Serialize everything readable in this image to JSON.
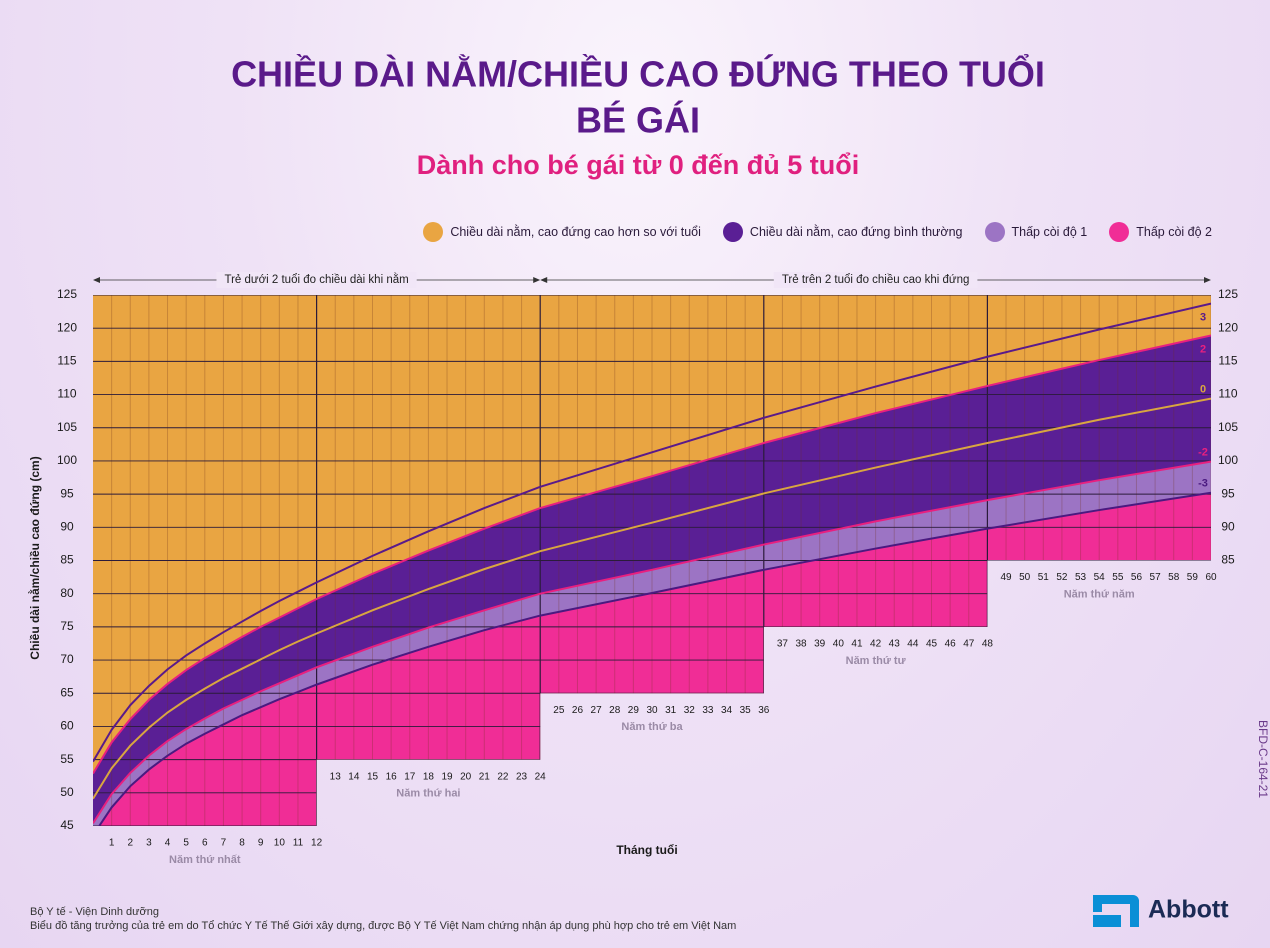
{
  "chart_data": {
    "type": "line",
    "title": [
      "CHIỀU DÀI NẰM/CHIỀU CAO ĐỨNG THEO TUỔI",
      "BÉ GÁI"
    ],
    "subtitle": "Dành cho bé gái từ 0 đến đủ 5 tuổi",
    "legend": [
      {
        "name": "Chiều dài nằm, cao đứng cao hơn so với tuổi",
        "color": "#e9a542"
      },
      {
        "name": "Chiều dài nằm, cao đứng bình thường",
        "color": "#5a1f95"
      },
      {
        "name": "Thấp còi độ 1",
        "color": "#9c74c4"
      },
      {
        "name": "Thấp còi độ 2",
        "color": "#f02d96"
      }
    ],
    "annotations": [
      "Trẻ dưới 2 tuổi đo chiều dài khi nằm",
      "Trẻ trên 2 tuổi đo chiều cao khi đứng"
    ],
    "y_label": "Chiều dài nằm/chiều cao đứng (cm)",
    "x_label": "Tháng tuổi",
    "xlim": [
      0,
      60
    ],
    "ylim": [
      45,
      125
    ],
    "y2lim": [
      45,
      125
    ],
    "yticks": [
      45,
      50,
      55,
      60,
      65,
      70,
      75,
      80,
      85,
      90,
      95,
      100,
      105,
      110,
      115,
      120,
      125
    ],
    "y2ticks": [
      85,
      90,
      95,
      100,
      105,
      110,
      115,
      120,
      125
    ],
    "xticks": [
      1,
      2,
      3,
      4,
      5,
      6,
      7,
      8,
      9,
      10,
      11,
      12,
      13,
      14,
      15,
      16,
      17,
      18,
      19,
      20,
      21,
      22,
      23,
      24,
      25,
      26,
      27,
      28,
      29,
      30,
      31,
      32,
      33,
      34,
      35,
      36,
      37,
      38,
      39,
      40,
      41,
      42,
      43,
      44,
      45,
      46,
      47,
      48,
      49,
      50,
      51,
      52,
      53,
      54,
      55,
      56,
      57,
      58,
      59,
      60
    ],
    "years": [
      {
        "label": "Năm thứ nhất",
        "start": 0,
        "end": 12,
        "floor": 45
      },
      {
        "label": "Năm thứ hai",
        "start": 12,
        "end": 24,
        "floor": 55
      },
      {
        "label": "Năm thứ ba",
        "start": 24,
        "end": 36,
        "floor": 65
      },
      {
        "label": "Năm thứ tư",
        "start": 36,
        "end": 48,
        "floor": 75
      },
      {
        "label": "Năm thứ năm",
        "start": 48,
        "end": 60,
        "floor": 85
      }
    ],
    "x": [
      0,
      1,
      2,
      3,
      4,
      5,
      6,
      7,
      8,
      9,
      10,
      11,
      12,
      15,
      18,
      21,
      24,
      30,
      36,
      42,
      48,
      54,
      60
    ],
    "series": [
      {
        "name": "3",
        "color": "#5a1a8a",
        "values": [
          54.7,
          59.5,
          63.2,
          66.1,
          68.6,
          70.7,
          72.5,
          74.2,
          75.8,
          77.4,
          78.9,
          80.3,
          81.7,
          85.7,
          89.4,
          92.9,
          96.1,
          101.3,
          106.5,
          111.2,
          115.7,
          119.8,
          123.7
        ]
      },
      {
        "name": "2",
        "color": "#e8207f",
        "values": [
          52.9,
          57.6,
          61.1,
          64.0,
          66.4,
          68.5,
          70.3,
          71.9,
          73.5,
          75.0,
          76.4,
          77.8,
          79.2,
          83.0,
          86.5,
          89.8,
          92.9,
          97.7,
          102.7,
          107.2,
          111.3,
          115.2,
          118.9
        ]
      },
      {
        "name": "0",
        "color": "#d9a640",
        "values": [
          49.1,
          53.7,
          57.1,
          59.8,
          62.1,
          64.0,
          65.7,
          67.3,
          68.7,
          70.1,
          71.5,
          72.8,
          74.0,
          77.5,
          80.7,
          83.7,
          86.4,
          90.7,
          95.1,
          99.0,
          102.7,
          106.2,
          109.4
        ]
      },
      {
        "name": "-2",
        "color": "#e8207f",
        "values": [
          45.4,
          49.8,
          53.0,
          55.6,
          57.8,
          59.6,
          61.2,
          62.7,
          64.0,
          65.3,
          66.5,
          67.7,
          68.9,
          72.0,
          74.9,
          77.5,
          80.0,
          83.6,
          87.4,
          90.9,
          94.1,
          97.1,
          99.9
        ]
      },
      {
        "name": "-3",
        "color": "#4a1a80",
        "values": [
          43.6,
          47.8,
          51.0,
          53.5,
          55.6,
          57.4,
          58.9,
          60.3,
          61.7,
          62.9,
          64.1,
          65.2,
          66.3,
          69.3,
          72.0,
          74.5,
          76.7,
          80.1,
          83.6,
          86.8,
          89.8,
          92.6,
          95.2
        ]
      }
    ],
    "footer": [
      "Bộ Y tế - Viện Dinh dưỡng",
      "Biểu đồ tăng trưởng của trẻ em do Tổ chức Y Tế Thế Giới xây dựng, được Bộ Y Tế Việt Nam chứng nhận áp dụng phù hợp cho trẻ em Việt Nam"
    ],
    "code": "BFD-C-164-21",
    "brand": "Abbott"
  }
}
